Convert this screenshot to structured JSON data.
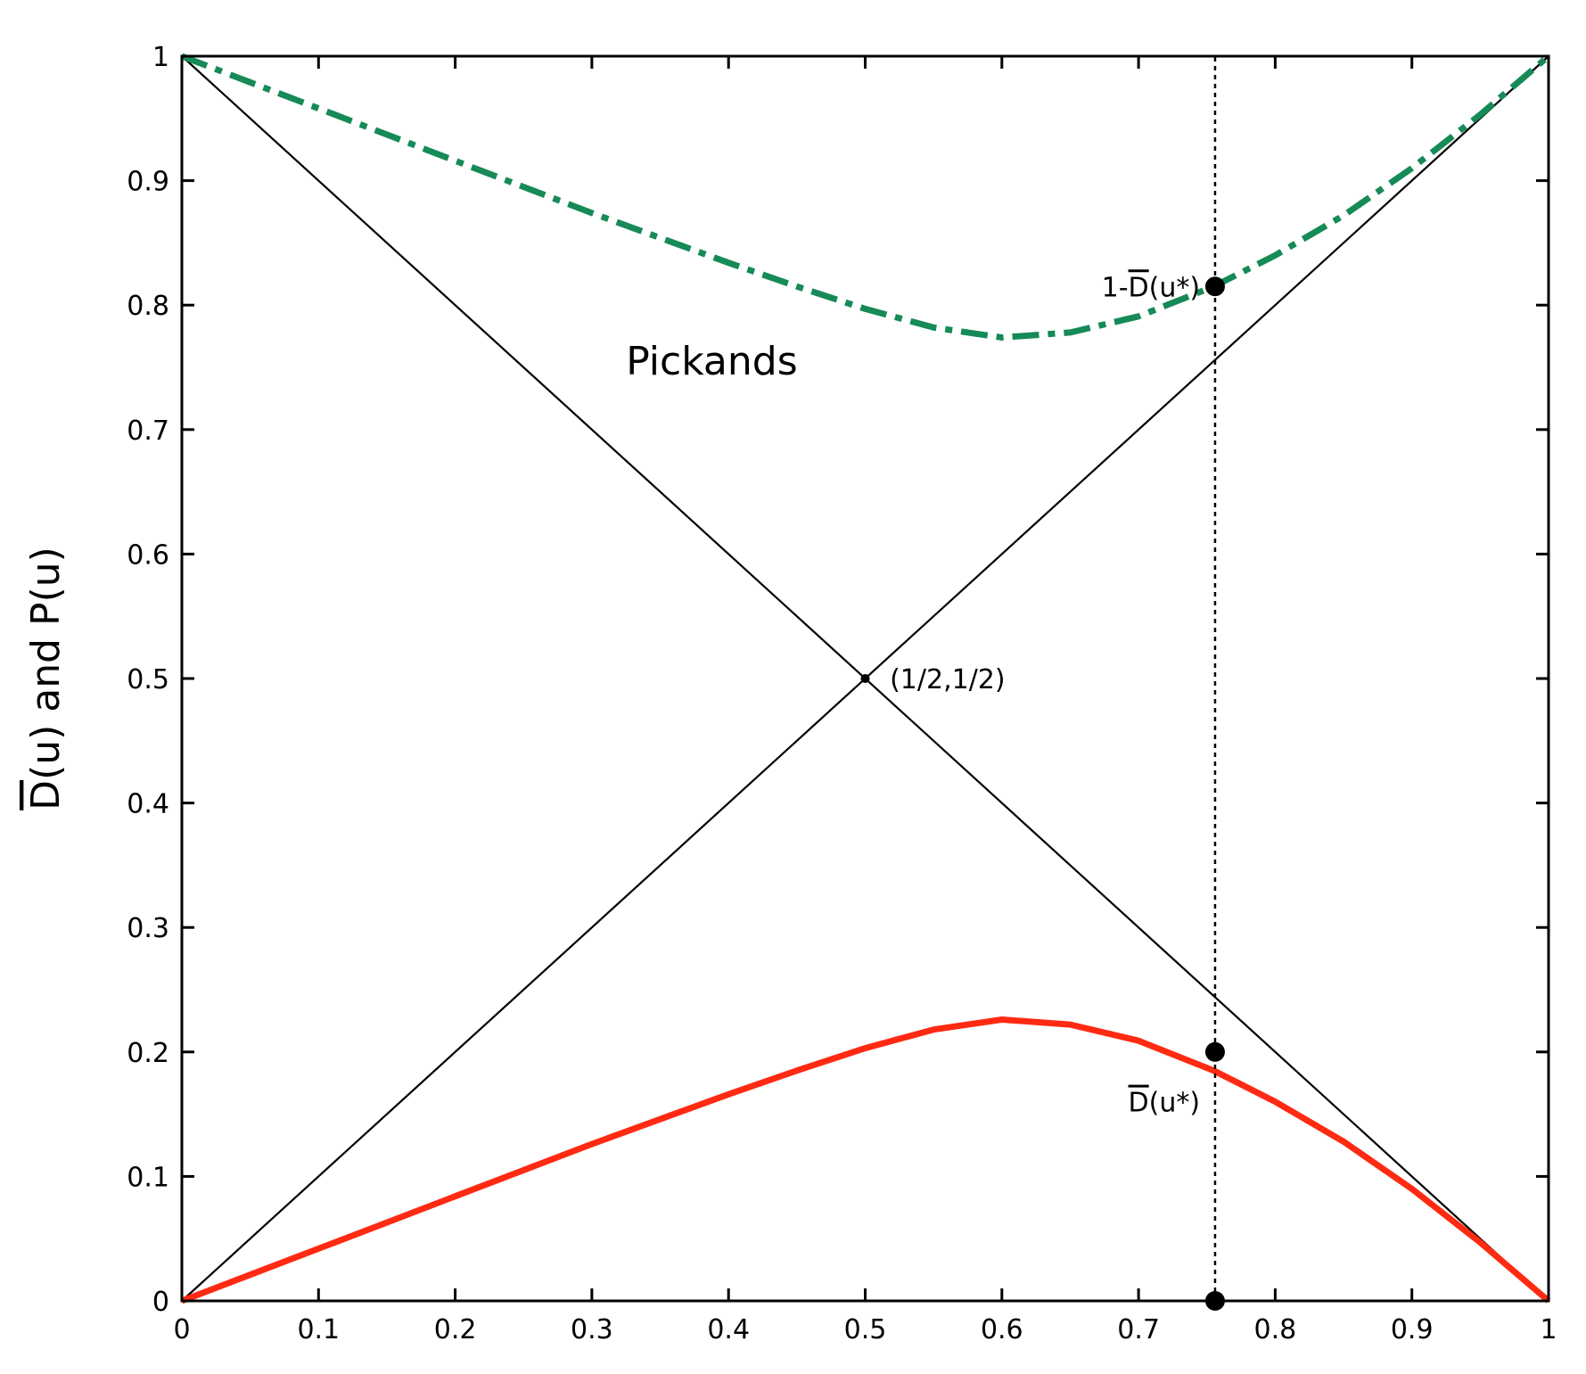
{
  "chart_data": {
    "type": "line",
    "title": "",
    "xlabel": "",
    "ylabel": "D(u) and P(u)",
    "ylabel_overline": "D",
    "ylabel_rest": "(u) and P(u)",
    "xlim": [
      0,
      1
    ],
    "ylim": [
      0,
      1
    ],
    "grid": false,
    "legend": "none",
    "x_ticks": [
      "0",
      "0.1",
      "0.2",
      "0.3",
      "0.4",
      "0.5",
      "0.6",
      "0.7",
      "0.8",
      "0.9",
      "1"
    ],
    "y_ticks": [
      "0",
      "0.1",
      "0.2",
      "0.3",
      "0.4",
      "0.5",
      "0.6",
      "0.7",
      "0.8",
      "0.9",
      "1"
    ],
    "x_tick_values": [
      0,
      0.1,
      0.2,
      0.3,
      0.4,
      0.5,
      0.6,
      0.7,
      0.8,
      0.9,
      1
    ],
    "y_tick_values": [
      0,
      0.1,
      0.2,
      0.3,
      0.4,
      0.5,
      0.6,
      0.7,
      0.8,
      0.9,
      1
    ],
    "series": [
      {
        "style": "solid-thin",
        "color": "#000000",
        "x": [
          0,
          1
        ],
        "y": [
          0,
          1
        ]
      },
      {
        "style": "solid-thin",
        "color": "#000000",
        "x": [
          0,
          1
        ],
        "y": [
          1,
          0
        ]
      },
      {
        "style": "dash-dot-thick",
        "color": "#168a57",
        "x": [
          0,
          0.05,
          0.1,
          0.15,
          0.2,
          0.25,
          0.3,
          0.35,
          0.4,
          0.45,
          0.5,
          0.55,
          0.6,
          0.65,
          0.7,
          0.755,
          0.8,
          0.85,
          0.9,
          0.95,
          1
        ],
        "y": [
          1,
          0.979,
          0.958,
          0.937,
          0.916,
          0.895,
          0.874,
          0.854,
          0.834,
          0.815,
          0.797,
          0.782,
          0.774,
          0.778,
          0.791,
          0.815,
          0.84,
          0.872,
          0.91,
          0.953,
          1
        ]
      },
      {
        "style": "solid-thick",
        "color": "#ff2a12",
        "x": [
          0,
          0.05,
          0.1,
          0.15,
          0.2,
          0.25,
          0.3,
          0.35,
          0.4,
          0.45,
          0.5,
          0.55,
          0.6,
          0.65,
          0.7,
          0.755,
          0.8,
          0.85,
          0.9,
          0.95,
          1
        ],
        "y": [
          0,
          0.021,
          0.042,
          0.063,
          0.084,
          0.105,
          0.126,
          0.146,
          0.166,
          0.185,
          0.203,
          0.218,
          0.226,
          0.222,
          0.209,
          0.185,
          0.16,
          0.128,
          0.09,
          0.047,
          0
        ]
      }
    ],
    "vline": {
      "x": 0.756,
      "style": "dotted",
      "color": "#000000"
    },
    "points": [
      {
        "x": 0.756,
        "y": 0.815
      },
      {
        "x": 0.756,
        "y": 0.2
      },
      {
        "x": 0.756,
        "y": 0
      },
      {
        "x": 0.5,
        "y": 0.5,
        "small": true
      }
    ],
    "annotations": [
      {
        "text": "Pickands",
        "x": 0.325,
        "y": 0.755,
        "size": "big"
      },
      {
        "text": "(1/2,1/2)",
        "x": 0.518,
        "y": 0.5,
        "size": "normal"
      },
      {
        "prefix": "1-",
        "overline": "D",
        "rest": "(u*)",
        "x": 0.745,
        "y": 0.815,
        "anchor": "end"
      },
      {
        "prefix": "",
        "overline": "D",
        "rest": "(u*)",
        "x": 0.745,
        "y": 0.16,
        "anchor": "end"
      }
    ]
  }
}
